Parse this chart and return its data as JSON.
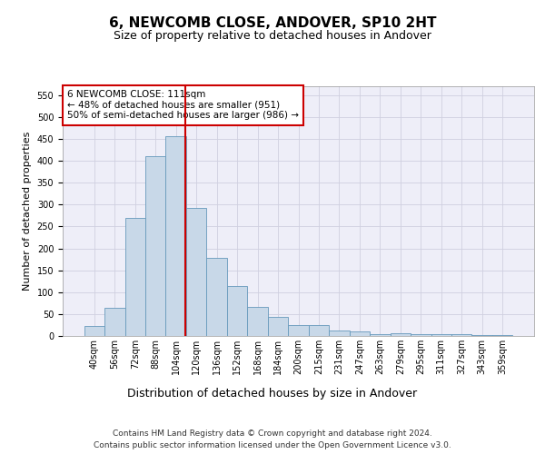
{
  "title": "6, NEWCOMB CLOSE, ANDOVER, SP10 2HT",
  "subtitle": "Size of property relative to detached houses in Andover",
  "xlabel": "Distribution of detached houses by size in Andover",
  "ylabel": "Number of detached properties",
  "bar_labels": [
    "40sqm",
    "56sqm",
    "72sqm",
    "88sqm",
    "104sqm",
    "120sqm",
    "136sqm",
    "152sqm",
    "168sqm",
    "184sqm",
    "200sqm",
    "215sqm",
    "231sqm",
    "247sqm",
    "263sqm",
    "279sqm",
    "295sqm",
    "311sqm",
    "327sqm",
    "343sqm",
    "359sqm"
  ],
  "bar_values": [
    22,
    65,
    270,
    410,
    455,
    293,
    178,
    113,
    67,
    43,
    24,
    24,
    13,
    10,
    5,
    6,
    4,
    5,
    4,
    3,
    2
  ],
  "bar_color": "#c8d8e8",
  "bar_edge_color": "#6699bb",
  "grid_color": "#d0d0e0",
  "bg_color": "#eeeef8",
  "vline_color": "#cc0000",
  "annotation_text": "6 NEWCOMB CLOSE: 111sqm\n← 48% of detached houses are smaller (951)\n50% of semi-detached houses are larger (986) →",
  "annotation_box_color": "#ffffff",
  "annotation_box_edge": "#cc0000",
  "ylim": [
    0,
    570
  ],
  "yticks": [
    0,
    50,
    100,
    150,
    200,
    250,
    300,
    350,
    400,
    450,
    500,
    550
  ],
  "footer_line1": "Contains HM Land Registry data © Crown copyright and database right 2024.",
  "footer_line2": "Contains public sector information licensed under the Open Government Licence v3.0.",
  "title_fontsize": 11,
  "subtitle_fontsize": 9,
  "xlabel_fontsize": 9,
  "ylabel_fontsize": 8,
  "tick_fontsize": 7,
  "annotation_fontsize": 7.5,
  "footer_fontsize": 6.5
}
